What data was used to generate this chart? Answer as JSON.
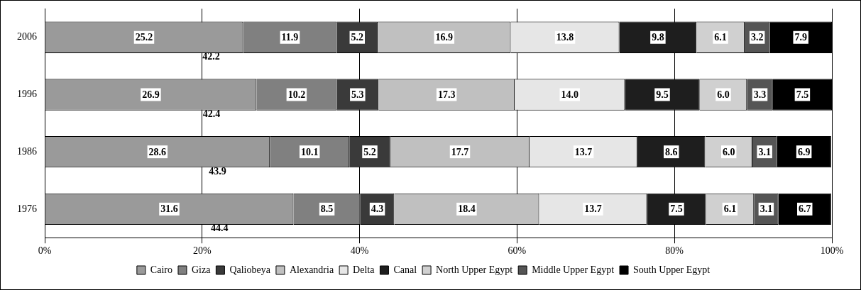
{
  "chart_data": {
    "type": "bar",
    "orientation": "horizontal",
    "stacked": true,
    "categories": [
      "2006",
      "1996",
      "1986",
      "1976"
    ],
    "series": [
      {
        "name": "Cairo",
        "color": "#9a9a9a",
        "values": [
          25.2,
          26.9,
          28.6,
          31.6
        ],
        "value_labels": [
          "25.2",
          "26.9",
          "28.6",
          "31.6"
        ]
      },
      {
        "name": "Giza",
        "color": "#808080",
        "values": [
          11.9,
          10.2,
          10.1,
          8.5
        ],
        "value_labels": [
          "11.9",
          "10.2",
          "10.1",
          "8.5"
        ]
      },
      {
        "name": "Qaliobeya",
        "color": "#3a3a3a",
        "values": [
          5.2,
          5.3,
          5.2,
          4.3
        ],
        "value_labels": [
          "5.2",
          "5.3",
          "5.2",
          "4.3"
        ]
      },
      {
        "name": "Alexandria",
        "color": "#c0c0c0",
        "values": [
          16.9,
          17.3,
          17.7,
          18.4
        ],
        "value_labels": [
          "16.9",
          "17.3",
          "17.7",
          "18.4"
        ]
      },
      {
        "name": "Delta",
        "color": "#e6e6e6",
        "values": [
          13.8,
          14.0,
          13.7,
          13.7
        ],
        "value_labels": [
          "13.8",
          "14.0",
          "13.7",
          "13.7"
        ]
      },
      {
        "name": "Canal",
        "color": "#1e1e1e",
        "values": [
          9.8,
          9.5,
          8.6,
          7.5
        ],
        "value_labels": [
          "9.8",
          "9.5",
          "8.6",
          "7.5"
        ]
      },
      {
        "name": "North Upper Egypt",
        "color": "#d0d0d0",
        "values": [
          6.1,
          6.0,
          6.0,
          6.1
        ],
        "value_labels": [
          "6.1",
          "6.0",
          "6.0",
          "6.1"
        ]
      },
      {
        "name": "Middle Upper Egypt",
        "color": "#555555",
        "values": [
          3.2,
          3.3,
          3.1,
          3.1
        ],
        "value_labels": [
          "3.2",
          "3.3",
          "3.1",
          "3.1"
        ]
      },
      {
        "name": "South Upper Egypt",
        "color": "#000000",
        "values": [
          7.9,
          7.5,
          6.9,
          6.7
        ],
        "value_labels": [
          "7.9",
          "7.5",
          "6.9",
          "6.7"
        ]
      }
    ],
    "annotations": [
      "42.2",
      "42.4",
      "43.9",
      "44.4"
    ],
    "xlim": [
      0,
      100
    ],
    "xticks": [
      {
        "value": 0,
        "label": "0%"
      },
      {
        "value": 20,
        "label": "20%"
      },
      {
        "value": 40,
        "label": "40%"
      },
      {
        "value": 60,
        "label": "60%"
      },
      {
        "value": 80,
        "label": "80%"
      },
      {
        "value": 100,
        "label": "100%"
      }
    ],
    "grid": "x",
    "legend": "bottom"
  }
}
